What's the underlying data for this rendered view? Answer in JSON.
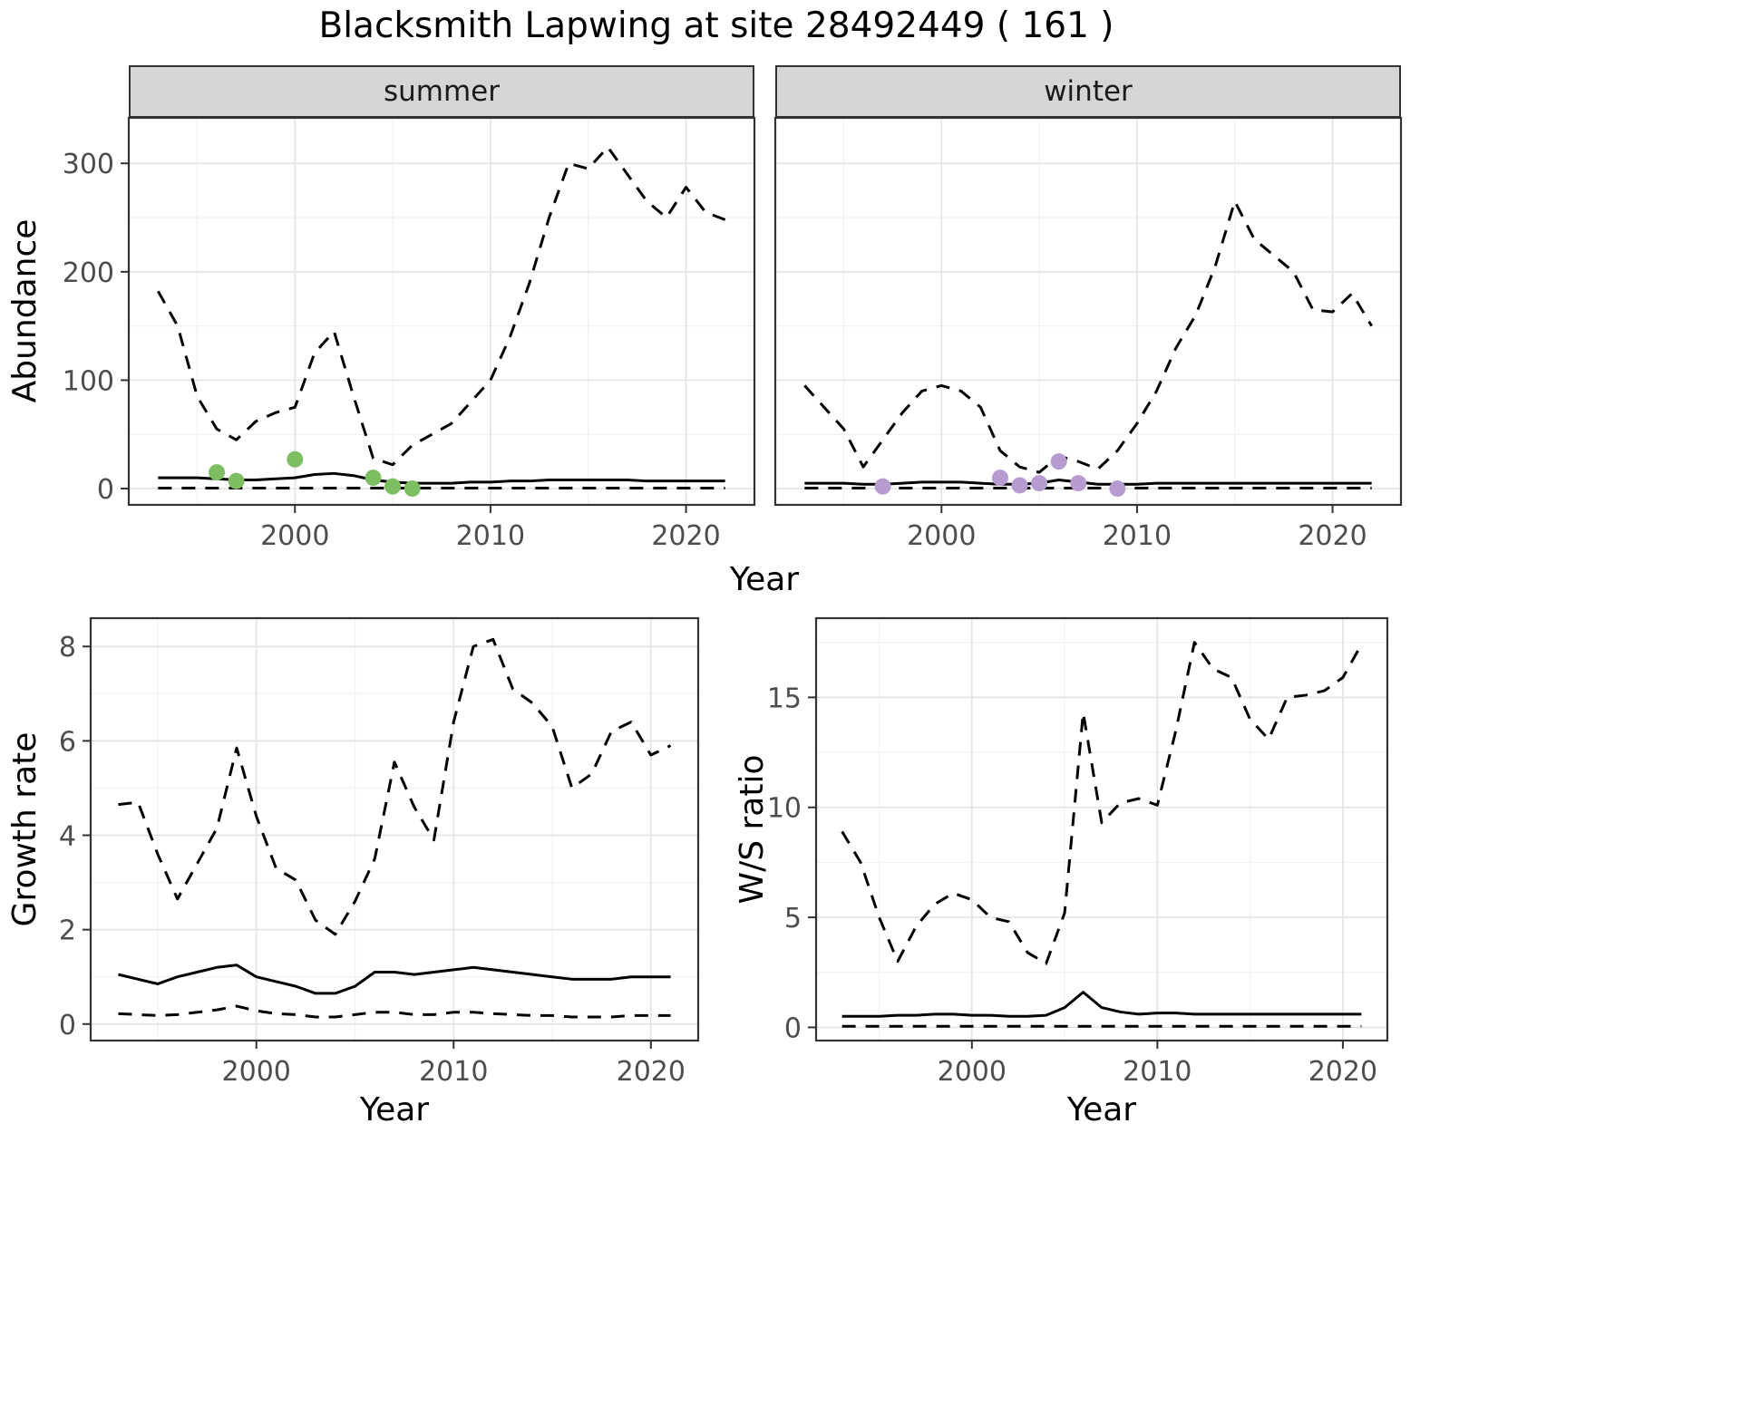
{
  "title": "Blacksmith Lapwing at site 28492449 ( 161 )",
  "colors": {
    "line": "#000000",
    "summer_points": "#7dbe62",
    "winter_points": "#b69bd1",
    "border": "#333333",
    "grid_major": "#e4e4e4",
    "grid_minor": "#f2f2f2",
    "axis_text": "#4d4d4d",
    "strip_bg": "#d5d5d5"
  },
  "chart_data": [
    {
      "type": "line",
      "title": "summer",
      "xlabel": "Year",
      "ylabel": "Abundance",
      "xlim": [
        1991.5,
        2023.5
      ],
      "ylim": [
        -15,
        342
      ],
      "xticks": [
        2000,
        2010,
        2020
      ],
      "yticks": [
        0,
        100,
        200,
        300
      ],
      "x": [
        1993,
        1994,
        1995,
        1996,
        1997,
        1998,
        1999,
        2000,
        2001,
        2002,
        2003,
        2004,
        2005,
        2006,
        2007,
        2008,
        2009,
        2010,
        2011,
        2012,
        2013,
        2014,
        2015,
        2016,
        2017,
        2018,
        2019,
        2020,
        2021,
        2022
      ],
      "series": [
        {
          "name": "upper_ci",
          "style": "dashed",
          "values": [
            182,
            150,
            85,
            55,
            45,
            62,
            70,
            75,
            125,
            145,
            85,
            28,
            22,
            40,
            50,
            60,
            80,
            100,
            140,
            190,
            250,
            300,
            295,
            315,
            290,
            265,
            250,
            278,
            255,
            248
          ]
        },
        {
          "name": "median",
          "style": "solid",
          "values": [
            10,
            10,
            10,
            9,
            8,
            8,
            9,
            10,
            13,
            14,
            12,
            8,
            6,
            5,
            5,
            5,
            6,
            6,
            7,
            7,
            8,
            8,
            8,
            8,
            8,
            7,
            7,
            7,
            7,
            7
          ]
        },
        {
          "name": "lower_ci",
          "style": "dashed",
          "values": [
            0.5,
            0.5,
            0.5,
            0.5,
            0.5,
            0.5,
            0.5,
            0.5,
            0.5,
            0.5,
            0.5,
            0.5,
            0.5,
            0.5,
            0.5,
            0.5,
            0.5,
            0.5,
            0.5,
            0.5,
            0.5,
            0.5,
            0.5,
            0.5,
            0.5,
            0.5,
            0.5,
            0.5,
            0.5,
            0.5
          ]
        }
      ],
      "points": {
        "name": "observed-counts",
        "color_key": "summer_points",
        "x": [
          1996,
          1997,
          2000,
          2004,
          2005,
          2006
        ],
        "y": [
          15,
          7,
          27,
          10,
          2,
          0
        ]
      }
    },
    {
      "type": "line",
      "title": "winter",
      "xlabel": "Year",
      "ylabel": "Abundance",
      "xlim": [
        1991.5,
        2023.5
      ],
      "ylim": [
        -15,
        342
      ],
      "xticks": [
        2000,
        2010,
        2020
      ],
      "yticks": [
        0,
        100,
        200,
        300
      ],
      "x": [
        1993,
        1994,
        1995,
        1996,
        1997,
        1998,
        1999,
        2000,
        2001,
        2002,
        2003,
        2004,
        2005,
        2006,
        2007,
        2008,
        2009,
        2010,
        2011,
        2012,
        2013,
        2014,
        2015,
        2016,
        2017,
        2018,
        2019,
        2020,
        2021,
        2022
      ],
      "series": [
        {
          "name": "upper_ci",
          "style": "dashed",
          "values": [
            95,
            75,
            55,
            20,
            45,
            70,
            90,
            95,
            90,
            75,
            35,
            20,
            15,
            30,
            25,
            18,
            35,
            60,
            90,
            130,
            160,
            205,
            265,
            230,
            215,
            200,
            165,
            163,
            180,
            150
          ]
        },
        {
          "name": "median",
          "style": "solid",
          "values": [
            5,
            5,
            5,
            4,
            4,
            5,
            6,
            6,
            6,
            5,
            4,
            4,
            5,
            8,
            6,
            4,
            4,
            4,
            5,
            5,
            5,
            5,
            5,
            5,
            5,
            5,
            5,
            5,
            5,
            5
          ]
        },
        {
          "name": "lower_ci",
          "style": "dashed",
          "values": [
            0.5,
            0.5,
            0.5,
            0.5,
            0.5,
            0.5,
            0.5,
            0.5,
            0.5,
            0.5,
            0.5,
            0.5,
            0.5,
            0.5,
            0.5,
            0.5,
            0.5,
            0.5,
            0.5,
            0.5,
            0.5,
            0.5,
            0.5,
            0.5,
            0.5,
            0.5,
            0.5,
            0.5,
            0.5,
            0.5
          ]
        }
      ],
      "points": {
        "name": "observed-counts",
        "color_key": "winter_points",
        "x": [
          1997,
          2003,
          2004,
          2005,
          2006,
          2007,
          2009
        ],
        "y": [
          2,
          10,
          3,
          5,
          25,
          5,
          0
        ]
      }
    },
    {
      "type": "line",
      "title": "Growth rate",
      "xlabel": "Year",
      "ylabel": "Growth rate",
      "xlim": [
        1991.6,
        2022.4
      ],
      "ylim": [
        -0.35,
        8.6
      ],
      "xticks": [
        2000,
        2010,
        2020
      ],
      "yticks": [
        0,
        2,
        4,
        6,
        8
      ],
      "x": [
        1993,
        1994,
        1995,
        1996,
        1997,
        1998,
        1999,
        2000,
        2001,
        2002,
        2003,
        2004,
        2005,
        2006,
        2007,
        2008,
        2009,
        2010,
        2011,
        2012,
        2013,
        2014,
        2015,
        2016,
        2017,
        2018,
        2019,
        2020,
        2021
      ],
      "series": [
        {
          "name": "upper_ci",
          "style": "dashed",
          "values": [
            4.65,
            4.7,
            3.6,
            2.65,
            3.4,
            4.15,
            5.85,
            4.4,
            3.3,
            3.05,
            2.2,
            1.9,
            2.6,
            3.5,
            5.55,
            4.6,
            3.9,
            6.4,
            8.0,
            8.15,
            7.1,
            6.8,
            6.3,
            5.0,
            5.3,
            6.2,
            6.4,
            5.7,
            5.9
          ]
        },
        {
          "name": "median",
          "style": "solid",
          "values": [
            1.05,
            0.95,
            0.85,
            1.0,
            1.1,
            1.2,
            1.25,
            1.0,
            0.9,
            0.8,
            0.65,
            0.65,
            0.8,
            1.1,
            1.1,
            1.05,
            1.1,
            1.15,
            1.2,
            1.15,
            1.1,
            1.05,
            1.0,
            0.95,
            0.95,
            0.95,
            1.0,
            1.0,
            1.0
          ]
        },
        {
          "name": "lower_ci",
          "style": "dashed",
          "values": [
            0.22,
            0.2,
            0.18,
            0.2,
            0.25,
            0.3,
            0.38,
            0.28,
            0.22,
            0.2,
            0.15,
            0.15,
            0.2,
            0.25,
            0.25,
            0.2,
            0.2,
            0.25,
            0.25,
            0.22,
            0.2,
            0.18,
            0.18,
            0.15,
            0.15,
            0.15,
            0.18,
            0.18,
            0.18
          ]
        }
      ]
    },
    {
      "type": "line",
      "title": "W/S ratio",
      "xlabel": "Year",
      "ylabel": "W/S ratio",
      "xlim": [
        1991.6,
        2022.4
      ],
      "ylim": [
        -0.6,
        18.6
      ],
      "xticks": [
        2000,
        2010,
        2020
      ],
      "yticks": [
        0,
        5,
        10,
        15
      ],
      "x": [
        1993,
        1994,
        1995,
        1996,
        1997,
        1998,
        1999,
        2000,
        2001,
        2002,
        2003,
        2004,
        2005,
        2006,
        2007,
        2008,
        2009,
        2010,
        2011,
        2012,
        2013,
        2014,
        2015,
        2016,
        2017,
        2018,
        2019,
        2020,
        2021
      ],
      "series": [
        {
          "name": "upper_ci",
          "style": "dashed",
          "values": [
            8.9,
            7.5,
            5.0,
            3.0,
            4.6,
            5.6,
            6.1,
            5.8,
            5.0,
            4.8,
            3.4,
            2.9,
            5.2,
            14.3,
            9.3,
            10.2,
            10.4,
            10.1,
            13.5,
            17.5,
            16.3,
            15.9,
            14.0,
            13.1,
            15.0,
            15.1,
            15.3,
            15.9,
            17.4
          ]
        },
        {
          "name": "median",
          "style": "solid",
          "values": [
            0.5,
            0.5,
            0.5,
            0.55,
            0.55,
            0.6,
            0.6,
            0.55,
            0.55,
            0.5,
            0.5,
            0.55,
            0.9,
            1.6,
            0.9,
            0.7,
            0.6,
            0.65,
            0.65,
            0.6,
            0.6,
            0.6,
            0.6,
            0.6,
            0.6,
            0.6,
            0.6,
            0.6,
            0.6
          ]
        },
        {
          "name": "lower_ci",
          "style": "dashed",
          "values": [
            0.05,
            0.05,
            0.05,
            0.05,
            0.05,
            0.05,
            0.05,
            0.05,
            0.05,
            0.05,
            0.05,
            0.05,
            0.05,
            0.05,
            0.05,
            0.05,
            0.05,
            0.05,
            0.05,
            0.05,
            0.05,
            0.05,
            0.05,
            0.05,
            0.05,
            0.05,
            0.05,
            0.05,
            0.05
          ]
        }
      ]
    }
  ]
}
